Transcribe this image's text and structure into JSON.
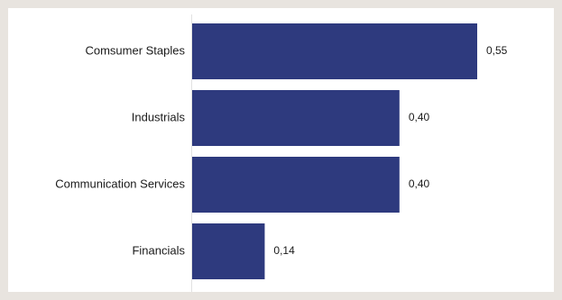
{
  "chart_data": {
    "type": "bar",
    "orientation": "horizontal",
    "categories": [
      "Comsumer Staples",
      "Industrials",
      "Communication Services",
      "Financials"
    ],
    "values": [
      0.55,
      0.4,
      0.4,
      0.14
    ],
    "value_labels": [
      "0,55",
      "0,40",
      "0,40",
      "0,14"
    ],
    "xlim": [
      0,
      0.6
    ],
    "grid": false,
    "legend": "none",
    "bar_color": "#2e3a7e",
    "axis_color": "#e2e2e2"
  }
}
